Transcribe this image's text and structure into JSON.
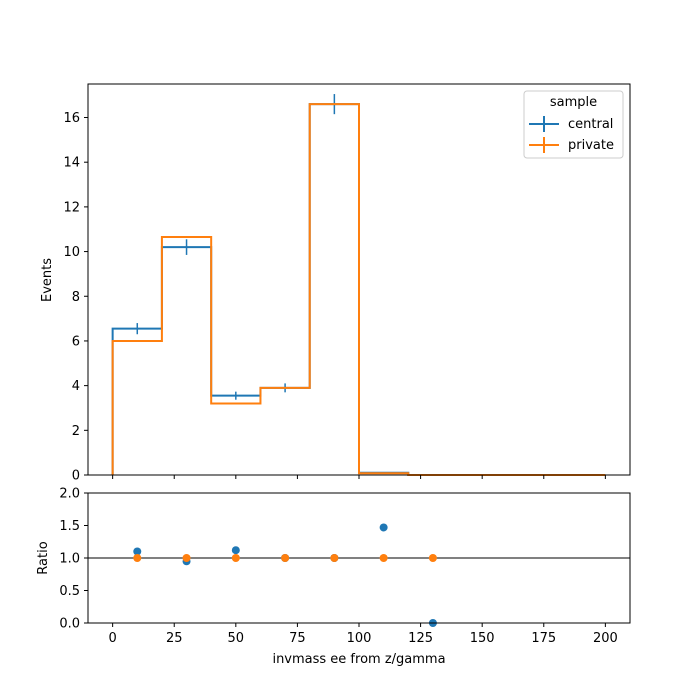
{
  "colors": {
    "central": "#1f77b4",
    "private": "#ff7f0e",
    "axis": "#000000"
  },
  "chart_data": [
    {
      "type": "histogram",
      "panel": "main",
      "bin_edges": [
        0,
        20,
        40,
        60,
        80,
        100,
        120,
        140,
        160,
        180,
        200
      ],
      "xlim": [
        -10,
        210
      ],
      "ylim": [
        0,
        17.5
      ],
      "yticks": [
        0,
        2,
        4,
        6,
        8,
        10,
        12,
        14,
        16
      ],
      "xlabel": "",
      "ylabel": "Events",
      "legend": {
        "title": "sample",
        "placement": "top-right"
      },
      "series": [
        {
          "name": "central",
          "color": "#1f77b4",
          "values": [
            6.55,
            10.2,
            3.55,
            3.9,
            16.6,
            0.1,
            0,
            0,
            0,
            0
          ],
          "errors": [
            0.25,
            0.35,
            0.18,
            0.2,
            0.45,
            0.03,
            0,
            0,
            0,
            0
          ]
        },
        {
          "name": "private",
          "color": "#ff7f0e",
          "values": [
            6.0,
            10.65,
            3.2,
            3.9,
            16.6,
            0.08,
            0,
            0,
            0,
            0
          ],
          "errors": [
            0,
            0,
            0,
            0,
            0,
            0,
            0,
            0,
            0,
            0
          ]
        }
      ]
    },
    {
      "type": "scatter",
      "panel": "ratio",
      "xlim": [
        -10,
        210
      ],
      "ylim": [
        0,
        2.0
      ],
      "xticks": [
        0,
        25,
        50,
        75,
        100,
        125,
        150,
        175,
        200
      ],
      "yticks": [
        0.0,
        0.5,
        1.0,
        1.5,
        2.0
      ],
      "xlabel": "invmass ee from z/gamma",
      "ylabel": "Ratio",
      "reference_line": 1.0,
      "series": [
        {
          "name": "central",
          "color": "#1f77b4",
          "x": [
            10,
            30,
            50,
            70,
            90,
            110,
            130
          ],
          "y": [
            1.1,
            0.95,
            1.12,
            1.0,
            1.0,
            1.47,
            0.0
          ]
        },
        {
          "name": "private",
          "color": "#ff7f0e",
          "x": [
            10,
            30,
            50,
            70,
            90,
            110,
            130
          ],
          "y": [
            1.0,
            1.0,
            1.0,
            1.0,
            1.0,
            1.0,
            1.0
          ]
        }
      ]
    }
  ]
}
